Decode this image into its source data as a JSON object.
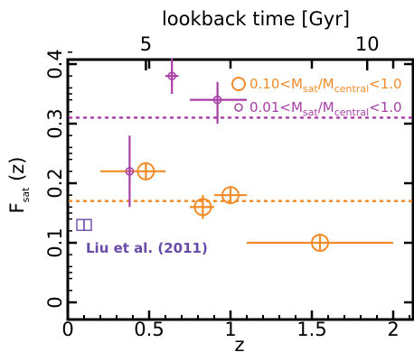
{
  "chart_data": {
    "type": "scatter",
    "title": "",
    "xlabel": "z",
    "ylabel": "F",
    "ylabel_sub": "sat",
    "ylabel_suffix": "(z)",
    "top_axis_label": "lookback time [Gyr]",
    "top_ticks": [
      {
        "label": "5",
        "z": 0.48
      },
      {
        "label": "10",
        "z": 1.84
      }
    ],
    "xlim": [
      0,
      2.2
    ],
    "ylim": [
      0,
      0.44
    ],
    "x_ticks": [
      0,
      0.5,
      1,
      1.5,
      2
    ],
    "x_tick_labels": [
      "0",
      "0.5",
      "1",
      "1.5",
      "2"
    ],
    "y_ticks": [
      0,
      0.1,
      0.2,
      0.3,
      0.4
    ],
    "y_tick_labels": [
      "0",
      "0.1",
      "0.2",
      "0.3",
      "0.4"
    ],
    "grid": false,
    "legend_position": "top-right",
    "series": [
      {
        "name": "0.10<M_sat/M_central<1.0",
        "legend_prefix": "0.10<M",
        "legend_sub1": "sat",
        "legend_mid": "/M",
        "legend_sub2": "central",
        "legend_suffix": "<1.0",
        "color": "#f28c28",
        "marker": "circle-large",
        "points": [
          {
            "x": 0.48,
            "y": 0.22,
            "xlo": 0.37,
            "xhi": 0.6,
            "ylo": 0.205,
            "yhi": 0.235
          },
          {
            "x": 0.83,
            "y": 0.16,
            "xlo": 0.75,
            "xhi": 0.9,
            "ylo": 0.14,
            "yhi": 0.18
          },
          {
            "x": 1.0,
            "y": 0.18,
            "xlo": 0.9,
            "xhi": 1.1,
            "ylo": 0.165,
            "yhi": 0.195
          },
          {
            "x": 1.55,
            "y": 0.1,
            "xlo": 1.1,
            "xhi": 2.0,
            "ylo": 0.085,
            "yhi": 0.115
          }
        ],
        "extra_errorbar": {
          "xlo": 0.2,
          "xhi": 0.37,
          "y": 0.22
        },
        "mean_line": 0.17
      },
      {
        "name": "0.01<M_sat/M_central<1.0",
        "legend_prefix": "0.01<M",
        "legend_sub1": "sat",
        "legend_mid": "/M",
        "legend_sub2": "central",
        "legend_suffix": "<1.0",
        "color": "#a83fa6",
        "marker": "circle-small",
        "points": [
          {
            "x": 0.38,
            "y": 0.22,
            "xlo": 0.37,
            "xhi": 0.39,
            "ylo": 0.16,
            "yhi": 0.28
          },
          {
            "x": 0.64,
            "y": 0.38,
            "xlo": 0.6,
            "xhi": 0.68,
            "ylo": 0.35,
            "yhi": 0.41
          },
          {
            "x": 0.92,
            "y": 0.34,
            "xlo": 0.75,
            "xhi": 1.1,
            "ylo": 0.3,
            "yhi": 0.37
          }
        ],
        "mean_line": 0.31
      }
    ],
    "annotation": {
      "text": "Liu et al. (2011)",
      "color": "#6a4aa8",
      "marker_x": 0.1,
      "marker_y": 0.13
    }
  }
}
